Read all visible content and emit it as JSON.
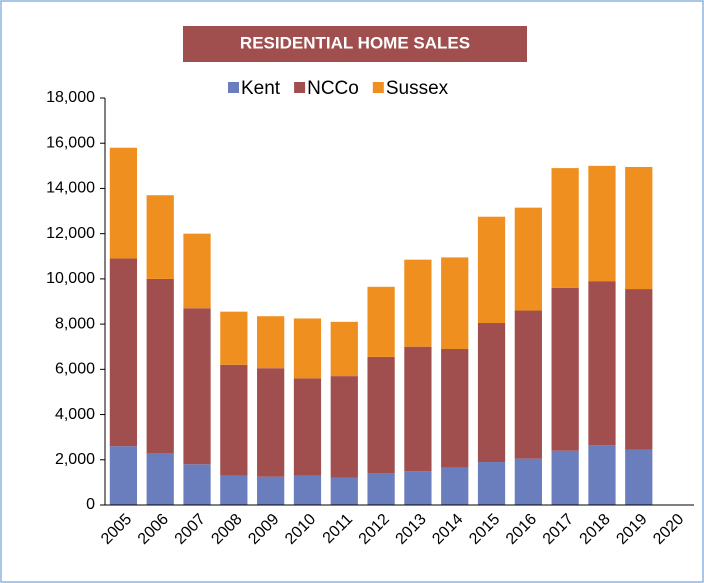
{
  "chart_data": {
    "type": "stacked_bar",
    "title": "RESIDENTIAL HOME SALES",
    "categories": [
      "2005",
      "2006",
      "2007",
      "2008",
      "2009",
      "2010",
      "2011",
      "2012",
      "2013",
      "2014",
      "2015",
      "2016",
      "2017",
      "2018",
      "2019",
      "2020"
    ],
    "series": [
      {
        "name": "Kent",
        "color": "#6a7dbd",
        "values": [
          2600,
          2300,
          1800,
          1300,
          1250,
          1300,
          1200,
          1400,
          1500,
          1650,
          1900,
          2050,
          2400,
          2650,
          2450,
          null
        ]
      },
      {
        "name": "NCCo",
        "color": "#a04e4e",
        "values": [
          8300,
          7700,
          6900,
          4900,
          4800,
          4300,
          4500,
          5150,
          5500,
          5250,
          6150,
          6550,
          7200,
          7250,
          7100,
          null
        ]
      },
      {
        "name": "Sussex",
        "color": "#ee8f1f",
        "values": [
          4900,
          3700,
          3300,
          2350,
          2300,
          2650,
          2400,
          3100,
          3850,
          4050,
          4700,
          4550,
          5300,
          5100,
          5400,
          null
        ]
      }
    ],
    "ylim": [
      0,
      18000
    ],
    "yticks": [
      0,
      {
        "value": 2000,
        "label": "2,000"
      },
      {
        "value": 4000,
        "label": "4,000"
      },
      {
        "value": 6000,
        "label": "6,000"
      },
      {
        "value": 8000,
        "label": "8,000"
      },
      {
        "value": 10000,
        "label": "10,000"
      },
      {
        "value": 12000,
        "label": "12,000"
      },
      {
        "value": 14000,
        "label": "14,000"
      },
      {
        "value": 16000,
        "label": "16,000"
      },
      {
        "value": 18000,
        "label": "18,000"
      }
    ],
    "grid": false,
    "legend": "top"
  }
}
